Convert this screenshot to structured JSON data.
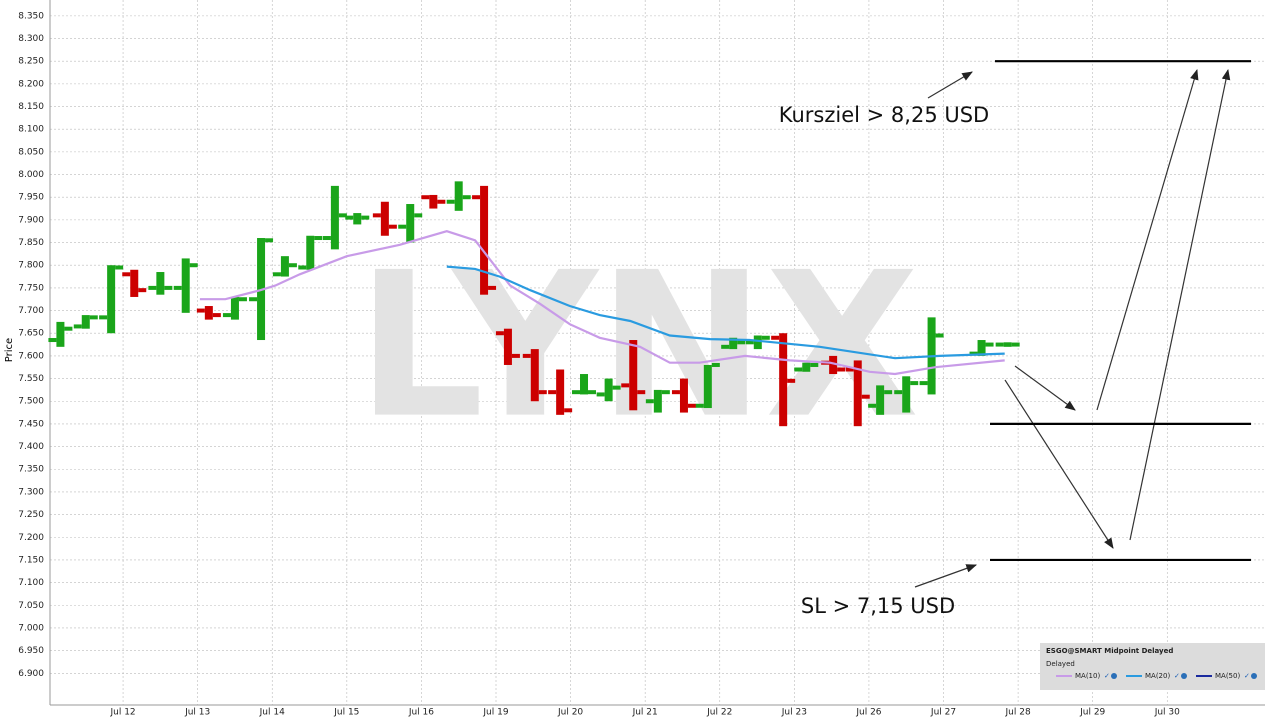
{
  "chart_data": {
    "type": "candlestick",
    "y_label": "Price",
    "watermark": "LYNX",
    "up_color": "#1aa51a",
    "down_color": "#cc0000",
    "grid": true,
    "ylim": [
      6.83,
      8.385
    ],
    "yticks": [
      {
        "value": 6.9,
        "label": "6.900"
      },
      {
        "value": 6.95,
        "label": "6.950"
      },
      {
        "value": 7.0,
        "label": "7.000"
      },
      {
        "value": 7.05,
        "label": "7.050"
      },
      {
        "value": 7.1,
        "label": "7.100"
      },
      {
        "value": 7.15,
        "label": "7.150"
      },
      {
        "value": 7.2,
        "label": "7.200"
      },
      {
        "value": 7.25,
        "label": "7.250"
      },
      {
        "value": 7.3,
        "label": "7.300"
      },
      {
        "value": 7.35,
        "label": "7.350"
      },
      {
        "value": 7.4,
        "label": "7.400"
      },
      {
        "value": 7.45,
        "label": "7.450"
      },
      {
        "value": 7.5,
        "label": "7.500"
      },
      {
        "value": 7.55,
        "label": "7.550"
      },
      {
        "value": 7.6,
        "label": "7.600"
      },
      {
        "value": 7.65,
        "label": "7.650"
      },
      {
        "value": 7.7,
        "label": "7.700"
      },
      {
        "value": 7.75,
        "label": "7.750"
      },
      {
        "value": 7.8,
        "label": "7.800"
      },
      {
        "value": 7.85,
        "label": "7.850"
      },
      {
        "value": 7.9,
        "label": "7.900"
      },
      {
        "value": 7.95,
        "label": "7.950"
      },
      {
        "value": 8.0,
        "label": "8.000"
      },
      {
        "value": 8.05,
        "label": "8.050"
      },
      {
        "value": 8.1,
        "label": "8.100"
      },
      {
        "value": 8.15,
        "label": "8.150"
      },
      {
        "value": 8.2,
        "label": "8.200"
      },
      {
        "value": 8.25,
        "label": "8.250"
      },
      {
        "value": 8.3,
        "label": "8.300"
      },
      {
        "value": 8.35,
        "label": "8.350"
      }
    ],
    "xlim": [
      -1.65,
      15.27
    ],
    "xticks": [
      {
        "value": 0,
        "label": "Jul 12"
      },
      {
        "value": 1,
        "label": "Jul 13"
      },
      {
        "value": 2,
        "label": "Jul 14"
      },
      {
        "value": 3,
        "label": "Jul 15"
      },
      {
        "value": 4,
        "label": "Jul 16"
      },
      {
        "value": 5,
        "label": "Jul 19"
      },
      {
        "value": 6,
        "label": "Jul 20"
      },
      {
        "value": 7,
        "label": "Jul 21"
      },
      {
        "value": 8,
        "label": "Jul 22"
      },
      {
        "value": 9,
        "label": "Jul 23"
      },
      {
        "value": 10,
        "label": "Jul 26"
      },
      {
        "value": 11,
        "label": "Jul 27"
      },
      {
        "value": 12,
        "label": "Jul 28"
      },
      {
        "value": 13,
        "label": "Jul 29"
      },
      {
        "value": 14,
        "label": "Jul 30"
      }
    ],
    "x": [
      -0.84,
      -0.5,
      -0.16,
      0.15,
      0.5,
      0.84,
      1.15,
      1.5,
      1.85,
      2.17,
      2.51,
      2.84,
      3.14,
      3.51,
      3.85,
      4.16,
      4.5,
      4.84,
      5.16,
      5.52,
      5.86,
      6.18,
      6.51,
      6.84,
      7.17,
      7.52,
      7.84,
      8.18,
      8.51,
      8.85,
      9.16,
      9.52,
      9.85,
      10.15,
      10.5,
      10.84,
      11.51,
      11.86
    ],
    "open": [
      7.635,
      7.665,
      7.685,
      7.78,
      7.75,
      7.75,
      7.7,
      7.69,
      7.725,
      7.78,
      7.795,
      7.86,
      7.905,
      7.91,
      7.885,
      7.95,
      7.94,
      7.95,
      7.65,
      7.6,
      7.52,
      7.52,
      7.515,
      7.535,
      7.5,
      7.52,
      7.49,
      7.62,
      7.63,
      7.64,
      7.57,
      7.585,
      7.57,
      7.49,
      7.52,
      7.54,
      7.605,
      7.625
    ],
    "high": [
      7.675,
      7.69,
      7.8,
      7.79,
      7.785,
      7.815,
      7.71,
      7.73,
      7.86,
      7.82,
      7.865,
      7.975,
      7.915,
      7.94,
      7.935,
      7.955,
      7.985,
      7.975,
      7.66,
      7.615,
      7.57,
      7.56,
      7.55,
      7.635,
      7.525,
      7.55,
      7.58,
      7.64,
      7.645,
      7.65,
      7.585,
      7.6,
      7.59,
      7.535,
      7.555,
      7.685,
      7.635,
      7.63
    ],
    "low": [
      7.62,
      7.66,
      7.65,
      7.73,
      7.735,
      7.695,
      7.68,
      7.68,
      7.635,
      7.775,
      7.79,
      7.835,
      7.89,
      7.865,
      7.85,
      7.925,
      7.92,
      7.735,
      7.58,
      7.5,
      7.47,
      7.515,
      7.5,
      7.48,
      7.475,
      7.475,
      7.485,
      7.615,
      7.615,
      7.445,
      7.565,
      7.56,
      7.445,
      7.47,
      7.475,
      7.515,
      7.6,
      7.62
    ],
    "close": [
      7.66,
      7.685,
      7.795,
      7.745,
      7.75,
      7.8,
      7.69,
      7.725,
      7.855,
      7.8,
      7.86,
      7.91,
      7.905,
      7.885,
      7.91,
      7.94,
      7.95,
      7.75,
      7.6,
      7.52,
      7.48,
      7.52,
      7.53,
      7.52,
      7.52,
      7.49,
      7.58,
      7.63,
      7.64,
      7.545,
      7.58,
      7.57,
      7.51,
      7.52,
      7.54,
      7.645,
      7.625,
      7.625
    ],
    "series": [
      {
        "name": "MA(10)",
        "color": "#c89be8",
        "x": [
          1.03,
          1.37,
          1.84,
          2.04,
          2.37,
          3.0,
          3.71,
          4.34,
          4.72,
          5.19,
          5.59,
          5.99,
          6.39,
          6.93,
          7.33,
          7.73,
          8.34,
          8.94,
          9.48,
          10.01,
          10.35,
          10.89,
          11.82
        ],
        "values": [
          7.725,
          7.725,
          7.745,
          7.755,
          7.78,
          7.82,
          7.845,
          7.875,
          7.855,
          7.755,
          7.715,
          7.67,
          7.64,
          7.62,
          7.585,
          7.585,
          7.6,
          7.59,
          7.585,
          7.565,
          7.56,
          7.575,
          7.59
        ]
      },
      {
        "name": "MA(20)",
        "color": "#2a9be0",
        "x": [
          4.34,
          4.72,
          5.05,
          5.46,
          5.99,
          6.39,
          6.8,
          7.33,
          7.87,
          8.4,
          9.34,
          10.35,
          10.95,
          11.82
        ],
        "values": [
          7.797,
          7.792,
          7.775,
          7.745,
          7.71,
          7.69,
          7.677,
          7.645,
          7.637,
          7.635,
          7.62,
          7.595,
          7.6,
          7.605
        ]
      },
      {
        "name": "MA(50)",
        "color": "#1a2a9e",
        "x": [],
        "values": []
      }
    ],
    "levels": [
      8.25,
      7.45,
      7.15
    ],
    "annotations": [
      "Kursziel > 8,25 USD",
      "SL > 7,15 USD"
    ],
    "legend_title": "ESGO@SMART  Midpoint Delayed",
    "legend_subtitle": "Delayed"
  }
}
